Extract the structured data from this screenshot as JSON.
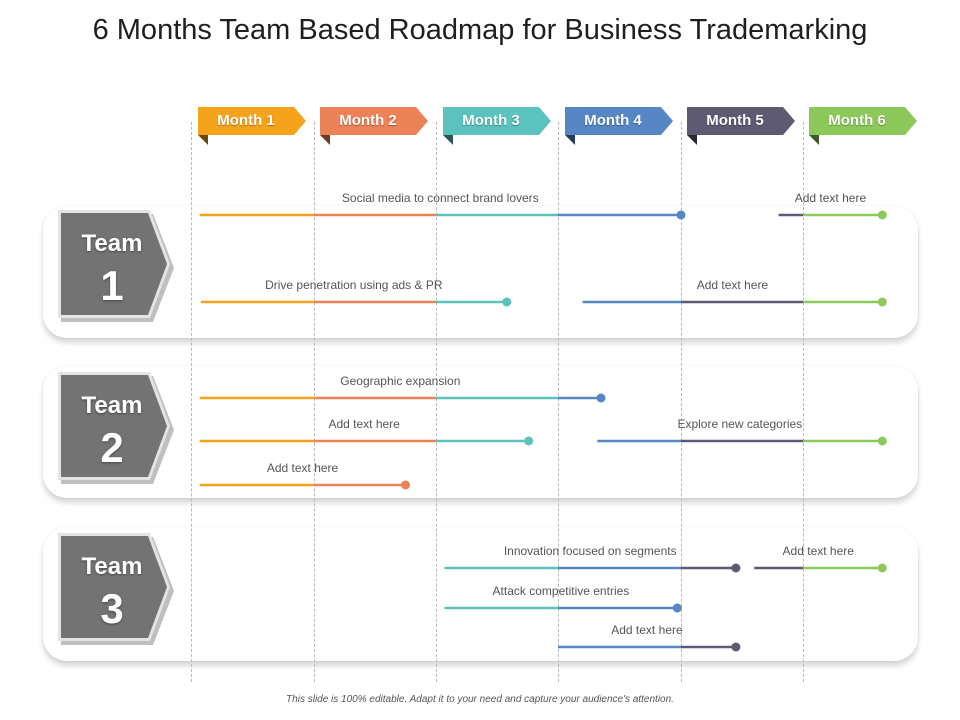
{
  "title": "6 Months Team Based Roadmap for Business Trademarking",
  "footer": "This slide is 100% editable. Adapt it to your need and capture your audience's attention.",
  "months": [
    {
      "label": "Month 1",
      "color": "#F5A31A"
    },
    {
      "label": "Month 2",
      "color": "#EC8257"
    },
    {
      "label": "Month 3",
      "color": "#5BC2BE"
    },
    {
      "label": "Month 4",
      "color": "#5687C4"
    },
    {
      "label": "Month 5",
      "color": "#5E5A72"
    },
    {
      "label": "Month 6",
      "color": "#8CC95A"
    }
  ],
  "teams": [
    {
      "word": "Team",
      "number": "1",
      "bars": [
        {
          "label": "Social media to connect brand lovers",
          "start": 0.07,
          "end": 4.0
        },
        {
          "label": "Add text here",
          "start": 4.8,
          "end": 5.65
        },
        {
          "label": "Drive penetration using ads & PR",
          "start": 0.08,
          "end": 2.58
        },
        {
          "label": "Add text here",
          "start": 3.2,
          "end": 5.65
        }
      ]
    },
    {
      "word": "Team",
      "number": "2",
      "bars": [
        {
          "label": "Geographic expansion",
          "start": 0.07,
          "end": 3.35
        },
        {
          "label": "Add text here",
          "start": 0.07,
          "end": 2.76
        },
        {
          "label": "Explore new categories",
          "start": 3.32,
          "end": 5.65
        },
        {
          "label": "Add text here",
          "start": 0.07,
          "end": 1.75
        }
      ]
    },
    {
      "word": "Team",
      "number": "3",
      "bars": [
        {
          "label": "Innovation focused on segments",
          "start": 2.07,
          "end": 4.45
        },
        {
          "label": "Add text here",
          "start": 4.6,
          "end": 5.65
        },
        {
          "label": "Attack competitive entries",
          "start": 2.07,
          "end": 3.97
        },
        {
          "label": "Add text here",
          "start": 3.0,
          "end": 4.45
        }
      ]
    }
  ]
}
